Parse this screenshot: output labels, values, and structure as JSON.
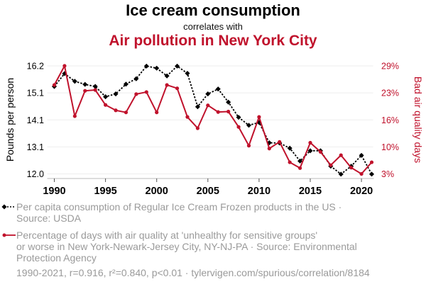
{
  "header": {
    "title": "Ice cream consumption",
    "subtitle": "correlates with",
    "title2": "Air pollution in New York City"
  },
  "colors": {
    "series1": "#000000",
    "series2": "#c0122c",
    "grid": "#eeeeee",
    "muted_text": "#9a9a9a"
  },
  "chart_data": {
    "type": "line",
    "title": "Ice cream consumption correlates with Air pollution in New York City",
    "xlabel": "",
    "x": [
      1990,
      1991,
      1992,
      1993,
      1994,
      1995,
      1996,
      1997,
      1998,
      1999,
      2000,
      2001,
      2002,
      2003,
      2004,
      2005,
      2006,
      2007,
      2008,
      2009,
      2010,
      2011,
      2012,
      2013,
      2014,
      2015,
      2016,
      2017,
      2018,
      2019,
      2020,
      2021
    ],
    "x_ticks": [
      "1990",
      "1995",
      "2000",
      "2005",
      "2010",
      "2015",
      "2020"
    ],
    "x_tick_values": [
      1990,
      1995,
      2000,
      2005,
      2010,
      2015,
      2020
    ],
    "xlim": [
      1990,
      2021
    ],
    "grid": true,
    "legend": "bottom",
    "series": [
      {
        "name": "Per capita consumption of Regular Ice Cream Frozen products in the US",
        "axis": "left",
        "ylabel": "Pounds per person",
        "ylim": [
          12.0,
          16.2
        ],
        "y_ticks": [
          "16.2",
          "15.1",
          "14.1",
          "13.1",
          "12.0"
        ],
        "y_tick_values": [
          16.2,
          15.15,
          14.1,
          13.05,
          12.0
        ],
        "style": "dotted-diamond",
        "values": [
          15.4,
          15.9,
          15.6,
          15.48,
          15.4,
          15.0,
          15.11,
          15.49,
          15.7,
          16.19,
          16.11,
          15.81,
          16.19,
          15.91,
          14.61,
          15.11,
          15.3,
          14.79,
          14.2,
          13.89,
          14.0,
          13.21,
          13.2,
          13.0,
          12.5,
          12.9,
          12.9,
          12.3,
          11.99,
          12.3,
          12.72,
          11.99
        ]
      },
      {
        "name": "Percentage of days with air quality at 'unhealthy for sensitive groups' or worse in New York-Newark-Jersey City, NY-NJ-PA",
        "axis": "right",
        "ylabel": "Bad air quality days",
        "ylim": [
          3,
          29
        ],
        "y_ticks": [
          "29%",
          "23%",
          "16%",
          "10%",
          "3%"
        ],
        "y_tick_values": [
          29,
          22.5,
          16,
          9.5,
          3
        ],
        "style": "solid-circle",
        "values": [
          24.4,
          29.0,
          16.9,
          23.0,
          23.2,
          19.6,
          18.3,
          17.8,
          22.2,
          22.7,
          17.8,
          24.4,
          23.6,
          16.7,
          14.0,
          19.5,
          17.9,
          18.0,
          14.3,
          9.8,
          16.7,
          9.1,
          10.7,
          5.8,
          4.4,
          10.5,
          8.3,
          5.1,
          7.5,
          4.5,
          3.0,
          5.8
        ]
      }
    ]
  },
  "legend": {
    "item1": {
      "line1": "Per capita consumption of Regular Ice Cream Frozen products in the US ·",
      "line2": "Source: USDA"
    },
    "item2": {
      "line1": "Percentage of days with air quality at 'unhealthy for sensitive groups'",
      "line2": "or worse in New York-Newark-Jersey City, NY-NJ-PA · Source: Environmental",
      "line3": "Protection Agency"
    }
  },
  "footer": "1990-2021, r=0.916, r²=0.840, p<0.01 · tylervigen.com/spurious/correlation/8184"
}
